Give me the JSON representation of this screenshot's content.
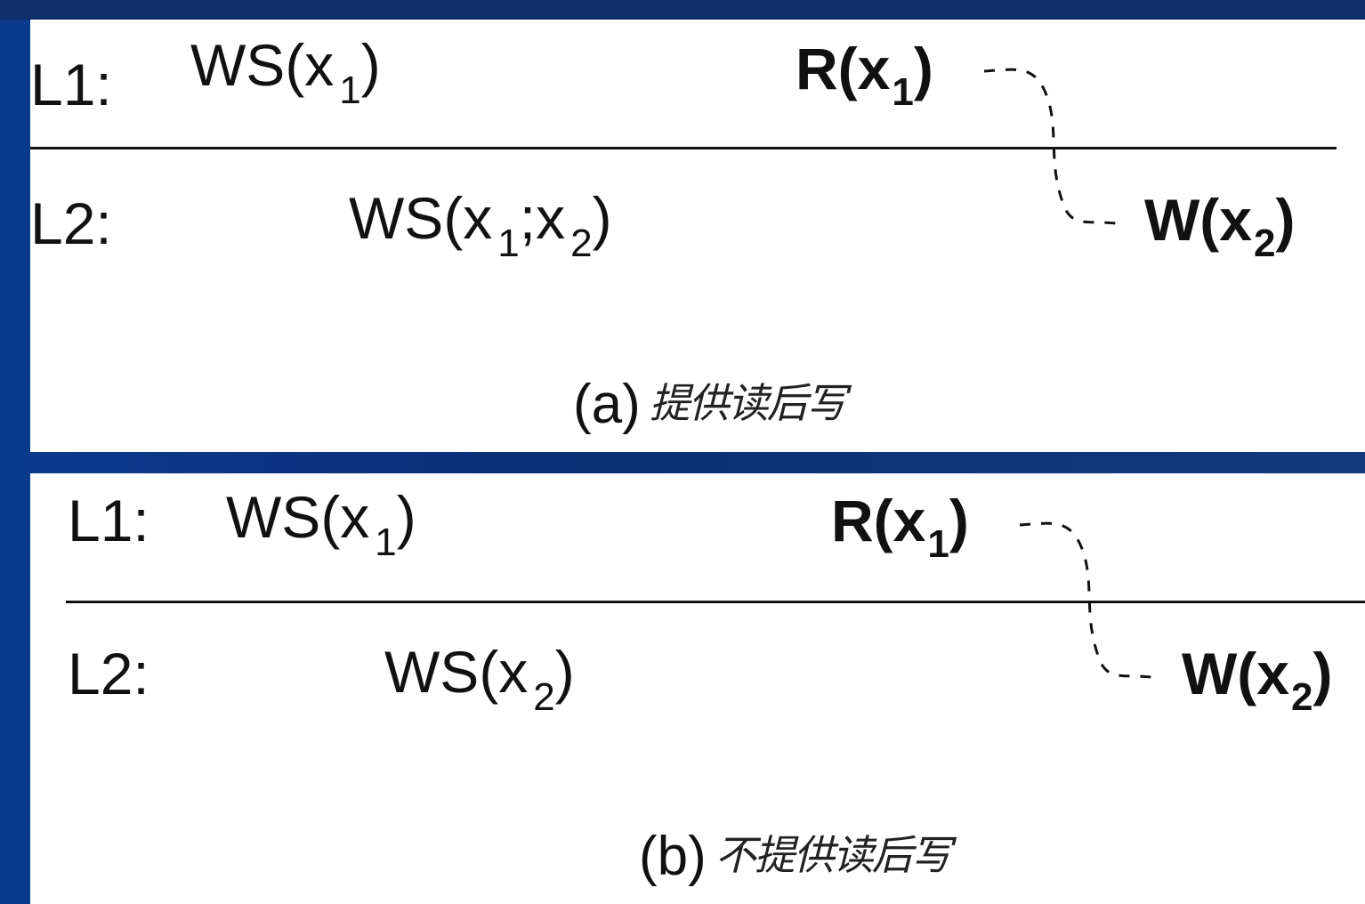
{
  "panel_a": {
    "l1_label": "L1:",
    "l1_ws": "WS(x",
    "l1_ws_sub": "1",
    "l1_ws_close": ")",
    "l1_r": "R(x",
    "l1_r_sub": "1",
    "l1_r_close": ")",
    "l2_label": "L2:",
    "l2_ws": "WS(x",
    "l2_ws_sub1": "1",
    "l2_ws_mid": ";x",
    "l2_ws_sub2": "2",
    "l2_ws_close": ")",
    "l2_w": "W(x",
    "l2_w_sub": "2",
    "l2_w_close": ")",
    "caption": "(a)",
    "caption_handwritten": "提供读后写"
  },
  "panel_b": {
    "l1_label": "L1:",
    "l1_ws": "WS(x",
    "l1_ws_sub": "1",
    "l1_ws_close": ")",
    "l1_r": "R(x",
    "l1_r_sub": "1",
    "l1_r_close": ")",
    "l2_label": "L2:",
    "l2_ws": "WS(x",
    "l2_ws_sub": "2",
    "l2_ws_close": ")",
    "l2_w": "W(x",
    "l2_w_sub": "2",
    "l2_w_close": ")",
    "caption": "(b)",
    "caption_handwritten": "不提供读后写"
  },
  "colors": {
    "background": "#0b2f78",
    "panel": "#ffffff",
    "ink": "#111111"
  }
}
